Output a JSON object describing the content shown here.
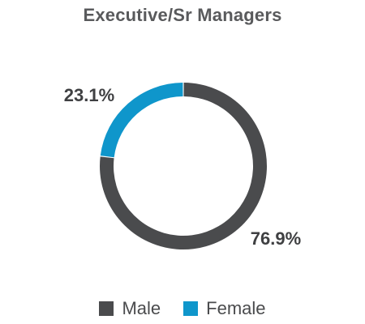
{
  "chart_data": {
    "type": "pie",
    "title": "Executive/Sr Managers",
    "categories": [
      "Male",
      "Female"
    ],
    "values": [
      76.9,
      23.1
    ],
    "labels": [
      "76.9%",
      "23.1%"
    ],
    "colors": [
      "#4a4b4d",
      "#0f96cb"
    ],
    "donut": true,
    "legend_position": "bottom"
  }
}
